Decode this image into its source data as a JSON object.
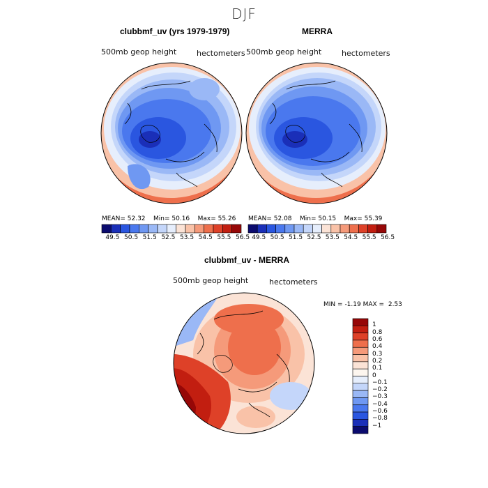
{
  "figure": {
    "title": "DJF"
  },
  "panels": [
    {
      "title": "clubbmf_uv (yrs 1979-1979)",
      "field_label": "500mb geop height",
      "units": "hectometers",
      "stats": {
        "mean_label": "MEAN=",
        "mean": "52.32",
        "min_label": "Min=",
        "min": "50.16",
        "max_label": "Max=",
        "max": "55.26"
      }
    },
    {
      "title": "MERRA",
      "field_label": "500mb geop height",
      "units": "hectometers",
      "stats": {
        "mean_label": "MEAN=",
        "mean": "52.08",
        "min_label": "Min=",
        "min": "50.15",
        "max_label": "Max=",
        "max": "55.39"
      }
    },
    {
      "title": "clubbmf_uv - MERRA",
      "field_label": "500mb geop height",
      "units": "hectometers",
      "stats": {
        "min_label": "MIN =",
        "min": "-1.19",
        "max_label": "MAX =",
        "max": "2.53"
      }
    }
  ],
  "colorbar_top": {
    "ticks": [
      "49.5",
      "50.5",
      "51.5",
      "52.5",
      "53.5",
      "54.5",
      "55.5",
      "56.5"
    ],
    "colors": [
      "#0b0b6e",
      "#1a2fb8",
      "#2a56e0",
      "#4a78ee",
      "#6f98f2",
      "#9ab8f6",
      "#c4d6fa",
      "#e6eefc",
      "#fbe3d6",
      "#f9c2a8",
      "#f59a7a",
      "#ee6f4c",
      "#de4128",
      "#c21e10",
      "#960707"
    ]
  },
  "colorbar_diff": {
    "ticks": [
      "1",
      "0.8",
      "0.6",
      "0.4",
      "0.3",
      "0.2",
      "0.1",
      "0",
      "−0.1",
      "−0.2",
      "−0.3",
      "−0.4",
      "−0.6",
      "−0.8",
      "−1"
    ],
    "colors": [
      "#960707",
      "#c21e10",
      "#de4128",
      "#ee6f4c",
      "#f59a7a",
      "#f9c2a8",
      "#fbe3d6",
      "#fdf6ef",
      "#e6eefc",
      "#c4d6fa",
      "#9ab8f6",
      "#6f98f2",
      "#4a78ee",
      "#2a56e0",
      "#1a2fb8",
      "#0b0b6e"
    ]
  }
}
